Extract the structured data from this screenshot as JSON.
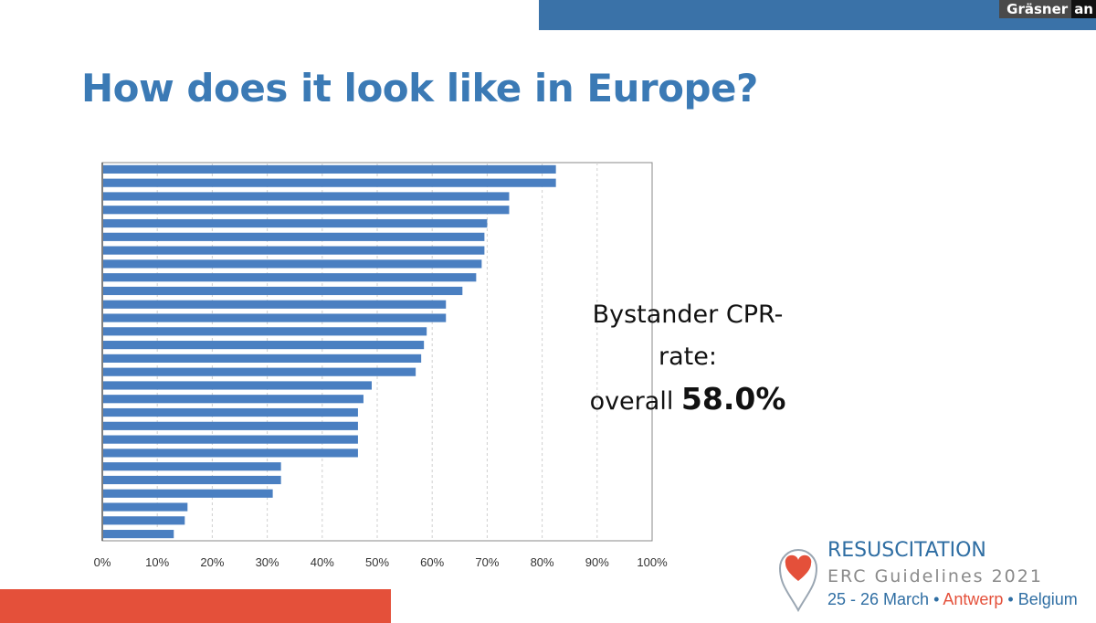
{
  "speaker": {
    "name": "Gräsner",
    "extra": "an"
  },
  "title": "How does it look like in Europe?",
  "callout": {
    "line1": "Bystander CPR-",
    "line2": "rate:",
    "prefix": "overall",
    "value": "58.0%"
  },
  "logo": {
    "word": "RESUSCITATION",
    "sub": "ERC Guidelines 2021",
    "date": "25 - 26 March",
    "city": "Antwerp",
    "country": "Belgium"
  },
  "colors": {
    "bar": "#4a7fc1",
    "title": "#3b7ab5",
    "accent_red": "#e4503a",
    "top_bar": "#3a72a8"
  },
  "chart_data": {
    "type": "bar",
    "orientation": "horizontal",
    "values": [
      82.5,
      82.5,
      74,
      74,
      70,
      69.5,
      69.5,
      69,
      68,
      65.5,
      62.5,
      62.5,
      59,
      58.5,
      58,
      57,
      49,
      47.5,
      46.5,
      46.5,
      46.5,
      46.5,
      32.5,
      32.5,
      31,
      15.5,
      15,
      13
    ],
    "xlim": [
      0,
      100
    ],
    "xticks": [
      "0%",
      "10%",
      "20%",
      "30%",
      "40%",
      "50%",
      "60%",
      "70%",
      "80%",
      "90%",
      "100%"
    ],
    "grid": "vertical-dashed"
  }
}
